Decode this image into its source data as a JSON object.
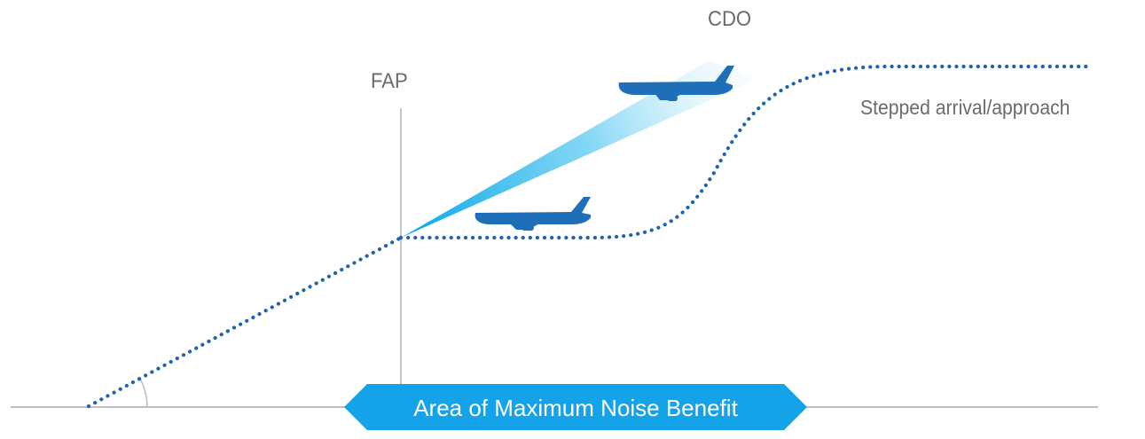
{
  "labels": {
    "cdo": "CDO",
    "fap": "FAP",
    "stepped": "Stepped arrival/approach",
    "banner": "Area of Maximum Noise Benefit"
  },
  "colors": {
    "path_dots": "#1f63b0",
    "aircraft": "#1f6fb8",
    "beam_start": "#00a6e6",
    "banner": "#14a3e8",
    "ground_line": "#bfbfbf",
    "fap_line": "#c4c4c4",
    "label_text": "#6b6b6b",
    "banner_text": "#ffffff"
  },
  "icons": [
    "airplane-icon-cdo",
    "airplane-icon-stepped"
  ]
}
